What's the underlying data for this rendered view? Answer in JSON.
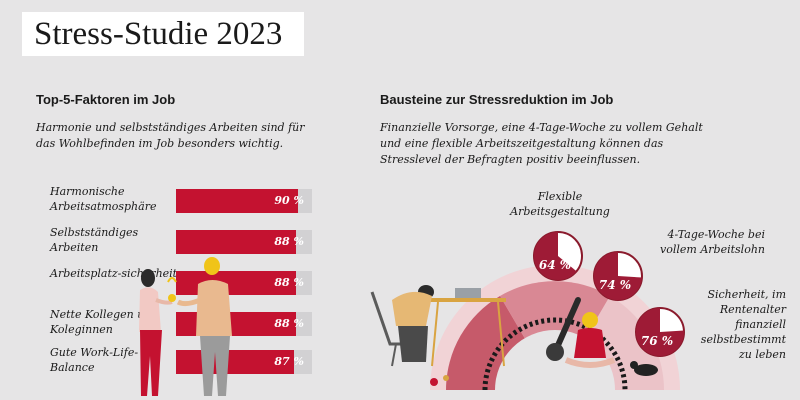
{
  "title": "Stress-Studie 2023",
  "left": {
    "heading": "Top-5-Faktoren im Job",
    "subtitle": "Harmonie und selbstständiges Arbeiten sind für das Wohlbefinden im Job besonders wichtig."
  },
  "right": {
    "heading": "Bausteine zur Stressreduktion im Job",
    "subtitle": "Finanzielle Vorsorge, eine 4-Tage-Woche zu vollem Gehalt und eine flexible Arbeitszeitgestaltung können das Stresslevel der Befragten positiv beeinflussen."
  },
  "colors": {
    "accent": "#c41230",
    "track": "#d2d1d3",
    "background": "#e6e5e6"
  },
  "chart_data": [
    {
      "type": "bar",
      "orientation": "horizontal",
      "title": "Top-5-Faktoren im Job",
      "categories": [
        "Harmonische Arbeitsatmosphäre",
        "Selbstständiges Arbeiten",
        "Arbeitsplatz-sicherheit",
        "Nette Kollegen und Koleginnen",
        "Gute Work-Life-Balance"
      ],
      "values": [
        90,
        88,
        88,
        88,
        87
      ],
      "labels": [
        "90 %",
        "88 %",
        "88 %",
        "88 %",
        "87 %"
      ],
      "xlim": [
        0,
        100
      ]
    },
    {
      "type": "pie",
      "title": "Bausteine zur Stressreduktion im Job",
      "categories": [
        "Flexible Arbeitsgestaltung",
        "4-Tage-Woche bei vollem Arbeitslohn",
        "Sicherheit, im Rentenalter finanziell selbstbestimmt zu leben"
      ],
      "values": [
        64,
        74,
        76
      ],
      "labels": [
        "64 %",
        "74 %",
        "76 %"
      ]
    }
  ]
}
